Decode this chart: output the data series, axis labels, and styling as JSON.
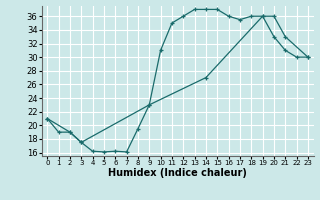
{
  "xlabel": "Humidex (Indice chaleur)",
  "ylabel": "",
  "xlim": [
    -0.5,
    23.5
  ],
  "ylim": [
    15.5,
    37.5
  ],
  "yticks": [
    16,
    18,
    20,
    22,
    24,
    26,
    28,
    30,
    32,
    34,
    36
  ],
  "xticks": [
    0,
    1,
    2,
    3,
    4,
    5,
    6,
    7,
    8,
    9,
    10,
    11,
    12,
    13,
    14,
    15,
    16,
    17,
    18,
    19,
    20,
    21,
    22,
    23
  ],
  "bg_color": "#cce8e8",
  "grid_color": "#ffffff",
  "line_color": "#1a6b6b",
  "line1_x": [
    0,
    1,
    2,
    3,
    4,
    5,
    6,
    7,
    8,
    9,
    10,
    11,
    12,
    13,
    14,
    15,
    16,
    17,
    18,
    19,
    20,
    21,
    22,
    23
  ],
  "line1_y": [
    21,
    19,
    19,
    17.5,
    16.2,
    16.1,
    16.2,
    16.1,
    19.5,
    23,
    31,
    35,
    36,
    37,
    37,
    37,
    36,
    35.5,
    36,
    36,
    33,
    31,
    30,
    30
  ],
  "line2_x": [
    0,
    2,
    3,
    9,
    14,
    19,
    20,
    21,
    23
  ],
  "line2_y": [
    21,
    19,
    17.5,
    23,
    27,
    36,
    36,
    33,
    30
  ]
}
